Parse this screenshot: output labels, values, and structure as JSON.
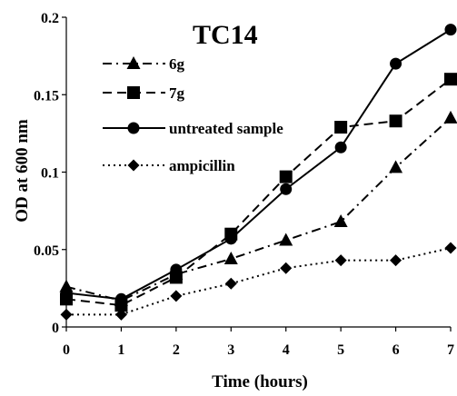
{
  "chart_data": {
    "type": "line",
    "title": "TC14",
    "xlabel": "Time (hours)",
    "ylabel": "OD at 600 nm",
    "x": [
      0,
      1,
      2,
      3,
      4,
      5,
      6,
      7
    ],
    "xlim": [
      0,
      7
    ],
    "ylim": [
      0,
      0.2
    ],
    "x_ticks": [
      "0",
      "1",
      "2",
      "3",
      "4",
      "5",
      "6",
      "7"
    ],
    "y_ticks": [
      {
        "value": 0,
        "label": "0"
      },
      {
        "value": 0.05,
        "label": "0.05"
      },
      {
        "value": 0.1,
        "label": "0.1"
      },
      {
        "value": 0.15,
        "label": "0.15"
      },
      {
        "value": 0.2,
        "label": "0.2"
      }
    ],
    "grid": false,
    "legend_position": "top-left",
    "series": [
      {
        "name": "6g",
        "marker": "triangle",
        "line_style": "dash-dot",
        "color": "#000000",
        "values": [
          0.026,
          0.017,
          0.034,
          0.044,
          0.056,
          0.068,
          0.103,
          0.135
        ]
      },
      {
        "name": "7g",
        "marker": "square",
        "line_style": "dashed",
        "color": "#000000",
        "values": [
          0.018,
          0.014,
          0.032,
          0.06,
          0.097,
          0.129,
          0.133,
          0.16
        ]
      },
      {
        "name": "untreated sample",
        "marker": "circle",
        "line_style": "solid",
        "color": "#000000",
        "values": [
          0.022,
          0.018,
          0.037,
          0.057,
          0.089,
          0.116,
          0.17,
          0.192
        ]
      },
      {
        "name": "ampicillin",
        "marker": "diamond",
        "line_style": "dotted",
        "color": "#000000",
        "values": [
          0.008,
          0.008,
          0.02,
          0.028,
          0.038,
          0.043,
          0.043,
          0.051
        ]
      }
    ]
  }
}
